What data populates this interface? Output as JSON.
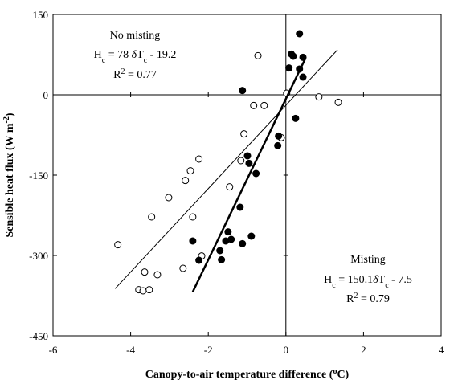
{
  "chart_data": {
    "type": "scatter",
    "xlabel": [
      {
        "t": "Canopy-to-air temperature difference ("
      },
      {
        "t": "o",
        "sup": true
      },
      {
        "t": "C)"
      }
    ],
    "ylabel": [
      {
        "t": "Sensible heat flux (W m"
      },
      {
        "t": "-2",
        "sup": true
      },
      {
        "t": ")"
      }
    ],
    "xlim": [
      -6,
      4
    ],
    "ylim": [
      -450,
      150
    ],
    "xticks": [
      -6,
      -4,
      -2,
      0,
      2,
      4
    ],
    "yticks": [
      -450,
      -300,
      -150,
      0,
      150
    ],
    "series": [
      {
        "name": "No misting",
        "marker": "open",
        "color": "#000",
        "x": [
          -0.72,
          0.02,
          0.85,
          1.35,
          -0.83,
          -0.56,
          -1.08,
          -0.12,
          -1.16,
          -2.24,
          -2.46,
          -2.59,
          -1.45,
          -3.02,
          -3.46,
          -2.4,
          -2.17,
          -4.33,
          -3.64,
          -3.31,
          -2.65,
          -3.79,
          -3.68,
          -3.52
        ],
        "y": [
          73,
          3,
          -4,
          -14,
          -20,
          -20,
          -73,
          -80,
          -123,
          -120,
          -142,
          -160,
          -172,
          -192,
          -228,
          -228,
          -301,
          -280,
          -331,
          -336,
          -324,
          -364,
          -366,
          -364
        ],
        "fit": {
          "x": [
            -4.4,
            1.33
          ],
          "y": [
            -362,
            84
          ],
          "width": 1
        }
      },
      {
        "name": "Misting",
        "marker": "filled",
        "color": "#000",
        "x": [
          0.35,
          0.14,
          0.19,
          0.44,
          0.08,
          0.35,
          0.44,
          -1.12,
          0.25,
          -0.19,
          -0.21,
          -0.99,
          -0.95,
          -0.77,
          -1.18,
          -1.49,
          -1.41,
          -1.55,
          -0.89,
          -2.4,
          -1.12,
          -1.7,
          -1.66,
          -2.24
        ],
        "y": [
          114,
          76,
          72,
          70,
          50,
          48,
          33,
          8,
          -44,
          -77,
          -95,
          -114,
          -128,
          -147,
          -210,
          -256,
          -270,
          -273,
          -264,
          -273,
          -278,
          -291,
          -308,
          -309
        ],
        "fit": {
          "x": [
            -2.4,
            0.5
          ],
          "y": [
            -368,
            67.5
          ],
          "width": 2.5
        }
      }
    ],
    "annotations": [
      {
        "lines": [
          [
            {
              "t": "No misting"
            }
          ],
          [
            {
              "t": "H"
            },
            {
              "t": "c",
              "sub": true
            },
            {
              "t": " = 78 "
            },
            {
              "t": "δ",
              "italic": true
            },
            {
              "t": "T"
            },
            {
              "t": "c",
              "sub": true
            },
            {
              "t": " - 19.2"
            }
          ],
          [
            {
              "t": "R"
            },
            {
              "t": "2",
              "sup": true
            },
            {
              "t": " = 0.77"
            }
          ]
        ]
      },
      {
        "lines": [
          [
            {
              "t": "Misting"
            }
          ],
          [
            {
              "t": "H"
            },
            {
              "t": "c",
              "sub": true
            },
            {
              "t": " = 150.1"
            },
            {
              "t": "δ",
              "italic": true
            },
            {
              "t": "T"
            },
            {
              "t": "c",
              "sub": true
            },
            {
              "t": " - 7.5"
            }
          ],
          [
            {
              "t": "R"
            },
            {
              "t": "2",
              "sup": true
            },
            {
              "t": " = 0.79"
            }
          ]
        ]
      }
    ]
  }
}
